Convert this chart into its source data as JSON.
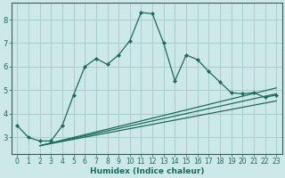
{
  "title": "",
  "xlabel": "Humidex (Indice chaleur)",
  "bg_color": "#cce8e8",
  "grid_color": "#aacccc",
  "line_color": "#1a6b5a",
  "spine_color": "#1a6b5a",
  "xlim": [
    -0.5,
    23.5
  ],
  "ylim": [
    2.3,
    8.7
  ],
  "xticks": [
    0,
    1,
    2,
    3,
    4,
    5,
    6,
    7,
    8,
    9,
    10,
    11,
    12,
    13,
    14,
    15,
    16,
    17,
    18,
    19,
    20,
    21,
    22,
    23
  ],
  "yticks": [
    3,
    4,
    5,
    6,
    7,
    8
  ],
  "main_line_x": [
    0,
    1,
    2,
    3,
    4,
    5,
    6,
    7,
    8,
    9,
    10,
    11,
    12,
    13,
    14,
    15,
    16,
    17,
    18,
    19,
    20,
    21,
    22,
    23
  ],
  "main_line_y": [
    3.5,
    3.0,
    2.85,
    2.85,
    3.5,
    4.8,
    6.0,
    6.35,
    6.1,
    6.5,
    7.1,
    8.3,
    8.25,
    7.0,
    5.4,
    6.5,
    6.3,
    5.8,
    5.35,
    4.9,
    4.85,
    4.9,
    4.7,
    4.8
  ],
  "reg_lines": [
    {
      "x": [
        2,
        23
      ],
      "y": [
        2.65,
        4.55
      ]
    },
    {
      "x": [
        2,
        23
      ],
      "y": [
        2.65,
        4.85
      ]
    },
    {
      "x": [
        2,
        23
      ],
      "y": [
        2.65,
        5.1
      ]
    }
  ],
  "tick_fontsize": 5.5,
  "xlabel_fontsize": 6.5
}
